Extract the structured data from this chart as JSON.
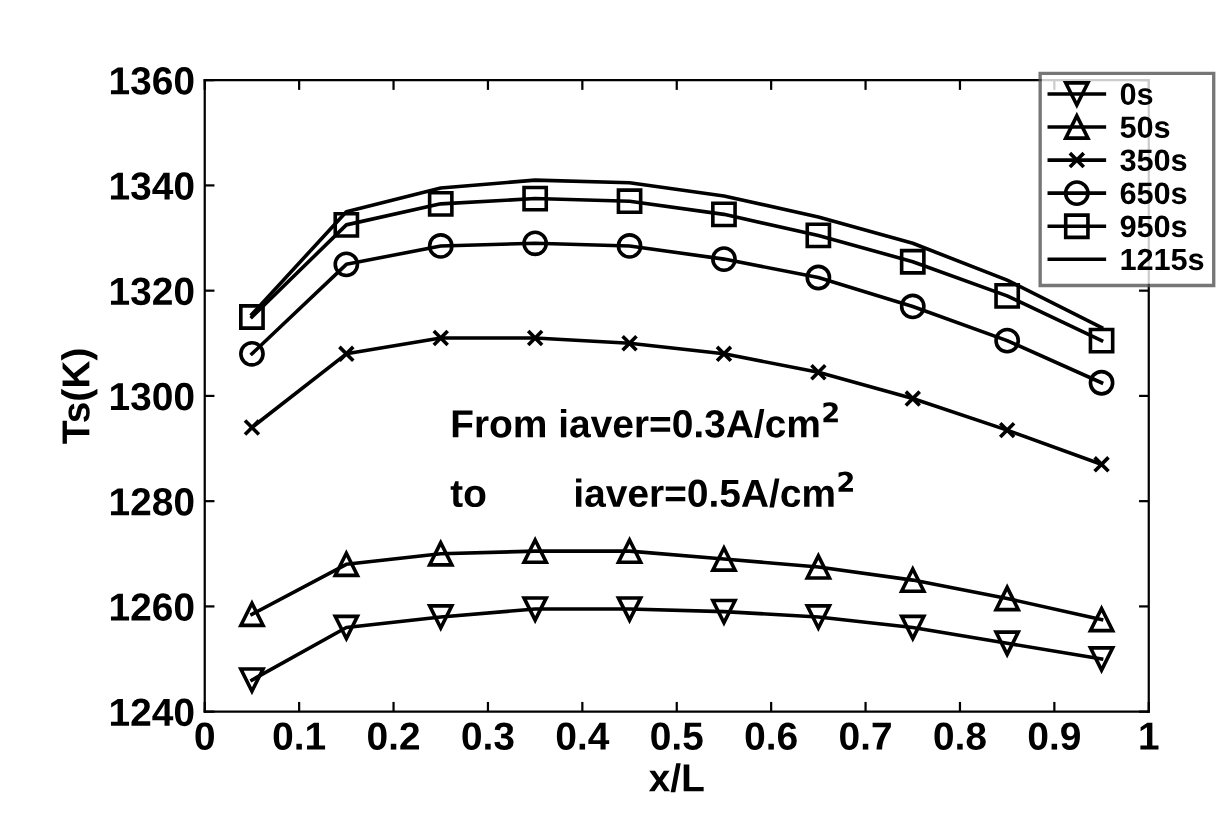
{
  "chart_data": {
    "type": "line",
    "xlabel": "x/L",
    "ylabel": "Ts(K)",
    "x": [
      0.05,
      0.15,
      0.25,
      0.35,
      0.45,
      0.55,
      0.65,
      0.75,
      0.85,
      0.95
    ],
    "xlim": [
      0,
      1
    ],
    "xticks": [
      0,
      0.1,
      0.2,
      0.3,
      0.4,
      0.5,
      0.6,
      0.7,
      0.8,
      0.9,
      1
    ],
    "ylim": [
      1240,
      1360
    ],
    "yticks": [
      1240,
      1260,
      1280,
      1300,
      1320,
      1340,
      1360
    ],
    "grid": false,
    "legend": "top right",
    "line_style": "solid",
    "annotations": [
      {
        "text": "From iaver=0.3A/cm$^{2}$"
      },
      {
        "text": "to        iaver=0.5A/cm$^{2}$"
      }
    ],
    "series": [
      {
        "name": "0s",
        "color": "#000000",
        "marker": "triangle_down",
        "values": [
          1246,
          1256,
          1258,
          1259.5,
          1259.5,
          1259,
          1258,
          1256,
          1253,
          1250
        ]
      },
      {
        "name": "50s",
        "color": "#000000",
        "marker": "triangle",
        "values": [
          1258.5,
          1268,
          1270,
          1270.5,
          1270.5,
          1269,
          1267.5,
          1265,
          1261.5,
          1257.5
        ]
      },
      {
        "name": "350s",
        "color": "#000000",
        "marker": "cross",
        "values": [
          1294,
          1308,
          1311,
          1311,
          1310,
          1308,
          1304.5,
          1299.5,
          1293.5,
          1287
        ]
      },
      {
        "name": "650s",
        "color": "#000000",
        "marker": "circle",
        "values": [
          1308,
          1325,
          1328.5,
          1329,
          1328.5,
          1326,
          1322.5,
          1317,
          1310.5,
          1302.5
        ]
      },
      {
        "name": "950s",
        "color": "#000000",
        "marker": "square",
        "values": [
          1315,
          1332.5,
          1336.5,
          1337.5,
          1337,
          1334.5,
          1330.5,
          1325.5,
          1319,
          1310.5
        ]
      },
      {
        "name": "1215s",
        "color": "#000000",
        "marker": "none",
        "values": [
          1315.5,
          1335,
          1339.5,
          1341,
          1340.5,
          1338,
          1334,
          1329,
          1322,
          1313
        ]
      }
    ]
  }
}
